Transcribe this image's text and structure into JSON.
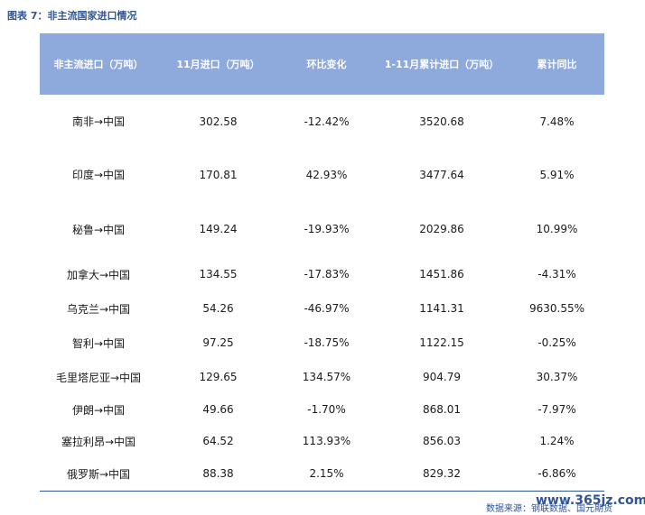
{
  "title": "图表 7：非主流国家进口情况",
  "table": {
    "headers": [
      "非主流进口（万吨）",
      "11月进口（万吨）",
      "环比变化",
      "1-11月累计进口（万吨）",
      "累计同比"
    ],
    "rows": [
      [
        "南非→中国",
        "302.58",
        "-12.42%",
        "3520.68",
        "7.48%"
      ],
      [
        "印度→中国",
        "170.81",
        "42.93%",
        "3477.64",
        "5.91%"
      ],
      [
        "秘鲁→中国",
        "149.24",
        "-19.93%",
        "2029.86",
        "10.99%"
      ],
      [
        "加拿大→中国",
        "134.55",
        "-17.83%",
        "1451.86",
        "-4.31%"
      ],
      [
        "乌克兰→中国",
        "54.26",
        "-46.97%",
        "1141.31",
        "9630.55%"
      ],
      [
        "智利→中国",
        "97.25",
        "-18.75%",
        "1122.15",
        "-0.25%"
      ],
      [
        "毛里塔尼亚→中国",
        "129.65",
        "134.57%",
        "904.79",
        "30.37%"
      ],
      [
        "伊朗→中国",
        "49.66",
        "-1.70%",
        "868.01",
        "-7.97%"
      ],
      [
        "塞拉利昂→中国",
        "64.52",
        "113.93%",
        "856.03",
        "1.24%"
      ],
      [
        "俄罗斯→中国",
        "88.38",
        "2.15%",
        "829.32",
        "-6.86%"
      ]
    ]
  },
  "source": "数据来源：钢联数据、国元期货",
  "watermark": "www.365jz.com"
}
